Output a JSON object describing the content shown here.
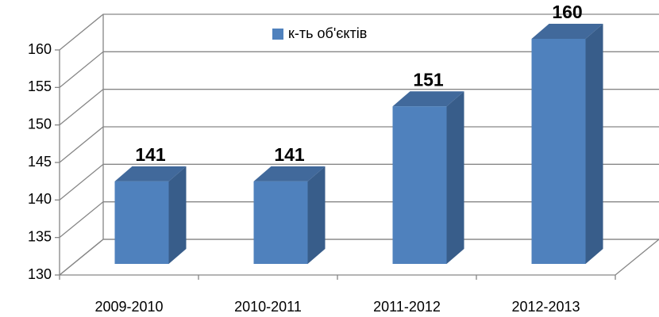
{
  "chart_data": {
    "type": "bar3d",
    "categories": [
      "2009-2010",
      "2010-2011",
      "2011-2012",
      "2012-2013"
    ],
    "series": [
      {
        "name": "к-ть об'єктів",
        "color": "#4f81bd",
        "values": [
          141,
          141,
          151,
          160
        ]
      }
    ],
    "ylim": [
      130,
      160
    ],
    "yticks": [
      130,
      135,
      140,
      145,
      150,
      155,
      160
    ],
    "grid": true,
    "legend": "top"
  }
}
